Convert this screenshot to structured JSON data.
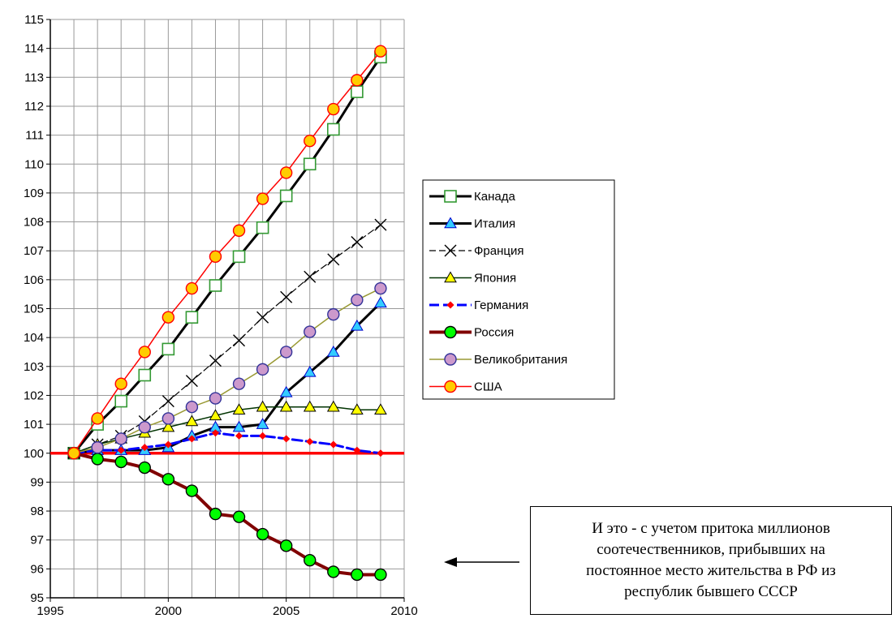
{
  "chart_data": {
    "type": "line",
    "title": "",
    "xlabel": "",
    "ylabel": "",
    "xlim": [
      1995,
      2010
    ],
    "ylim": [
      95,
      115
    ],
    "xticks": [
      1995,
      2000,
      2005,
      2010
    ],
    "yticks": [
      95,
      96,
      97,
      98,
      99,
      100,
      101,
      102,
      103,
      104,
      105,
      106,
      107,
      108,
      109,
      110,
      111,
      112,
      113,
      114,
      115
    ],
    "grid": true,
    "legend_position": "right",
    "x": [
      1996,
      1997,
      1998,
      1999,
      2000,
      2001,
      2002,
      2003,
      2004,
      2005,
      2006,
      2007,
      2008,
      2009
    ],
    "reference_line": {
      "y": 100,
      "color": "#ff0000"
    },
    "series": [
      {
        "name": "Канада",
        "line_color": "#000000",
        "line_width": 3,
        "dash": "",
        "marker": "square",
        "marker_fill": "#ffffff",
        "marker_stroke": "#339933",
        "values": [
          100.0,
          101.0,
          101.8,
          102.7,
          103.6,
          104.7,
          105.8,
          106.8,
          107.8,
          108.9,
          110.0,
          111.2,
          112.5,
          113.7
        ]
      },
      {
        "name": "Италия",
        "line_color": "#000000",
        "line_width": 3,
        "dash": "",
        "marker": "triangle",
        "marker_fill": "#33ccff",
        "marker_stroke": "#0000cc",
        "values": [
          100.0,
          100.1,
          100.1,
          100.1,
          100.2,
          100.6,
          100.9,
          100.9,
          101.0,
          102.1,
          102.8,
          103.5,
          104.4,
          105.2
        ]
      },
      {
        "name": "Франция",
        "line_color": "#000000",
        "line_width": 1.2,
        "dash": "8,4",
        "marker": "x",
        "marker_fill": "none",
        "marker_stroke": "#000000",
        "values": [
          100.0,
          100.3,
          100.6,
          101.1,
          101.8,
          102.5,
          103.2,
          103.9,
          104.7,
          105.4,
          106.1,
          106.7,
          107.3,
          107.9
        ]
      },
      {
        "name": "Япония",
        "line_color": "#003300",
        "line_width": 1.5,
        "dash": "",
        "marker": "triangle",
        "marker_fill": "#ffff00",
        "marker_stroke": "#000000",
        "values": [
          100.0,
          100.3,
          100.5,
          100.7,
          100.9,
          101.1,
          101.3,
          101.5,
          101.6,
          101.6,
          101.6,
          101.6,
          101.5,
          101.5
        ]
      },
      {
        "name": "Германия",
        "line_color": "#0000ff",
        "line_width": 3,
        "dash": "12,5",
        "marker": "diamond",
        "marker_fill": "#ff0000",
        "marker_stroke": "#ff0000",
        "values": [
          100.0,
          100.1,
          100.1,
          100.2,
          100.3,
          100.5,
          100.7,
          100.6,
          100.6,
          100.5,
          100.4,
          100.3,
          100.1,
          100.0
        ]
      },
      {
        "name": "Россия",
        "line_color": "#800000",
        "line_width": 4,
        "dash": "",
        "marker": "circle",
        "marker_fill": "#00ff00",
        "marker_stroke": "#000000",
        "values": [
          100.0,
          99.8,
          99.7,
          99.5,
          99.1,
          98.7,
          97.9,
          97.8,
          97.2,
          96.8,
          96.3,
          95.9,
          95.8,
          95.8
        ]
      },
      {
        "name": "Великобритания",
        "line_color": "#999933",
        "line_width": 1.5,
        "dash": "",
        "marker": "circle",
        "marker_fill": "#cc99cc",
        "marker_stroke": "#333399",
        "values": [
          100.0,
          100.2,
          100.5,
          100.9,
          101.2,
          101.6,
          101.9,
          102.4,
          102.9,
          103.5,
          104.2,
          104.8,
          105.3,
          105.7
        ]
      },
      {
        "name": "США",
        "line_color": "#ff0000",
        "line_width": 1.5,
        "dash": "",
        "marker": "circle",
        "marker_fill": "#ffcc00",
        "marker_stroke": "#ff0000",
        "values": [
          100.0,
          101.2,
          102.4,
          103.5,
          104.7,
          105.7,
          106.8,
          107.7,
          108.8,
          109.7,
          110.8,
          111.9,
          112.9,
          113.9
        ]
      }
    ]
  },
  "annotation": {
    "lines": [
      "И это - с учетом притока миллионов",
      "соотечественников, прибывших на",
      "постоянное место жительства в РФ из",
      "республик бывшего СССР"
    ],
    "arrow": "left-arrow"
  }
}
